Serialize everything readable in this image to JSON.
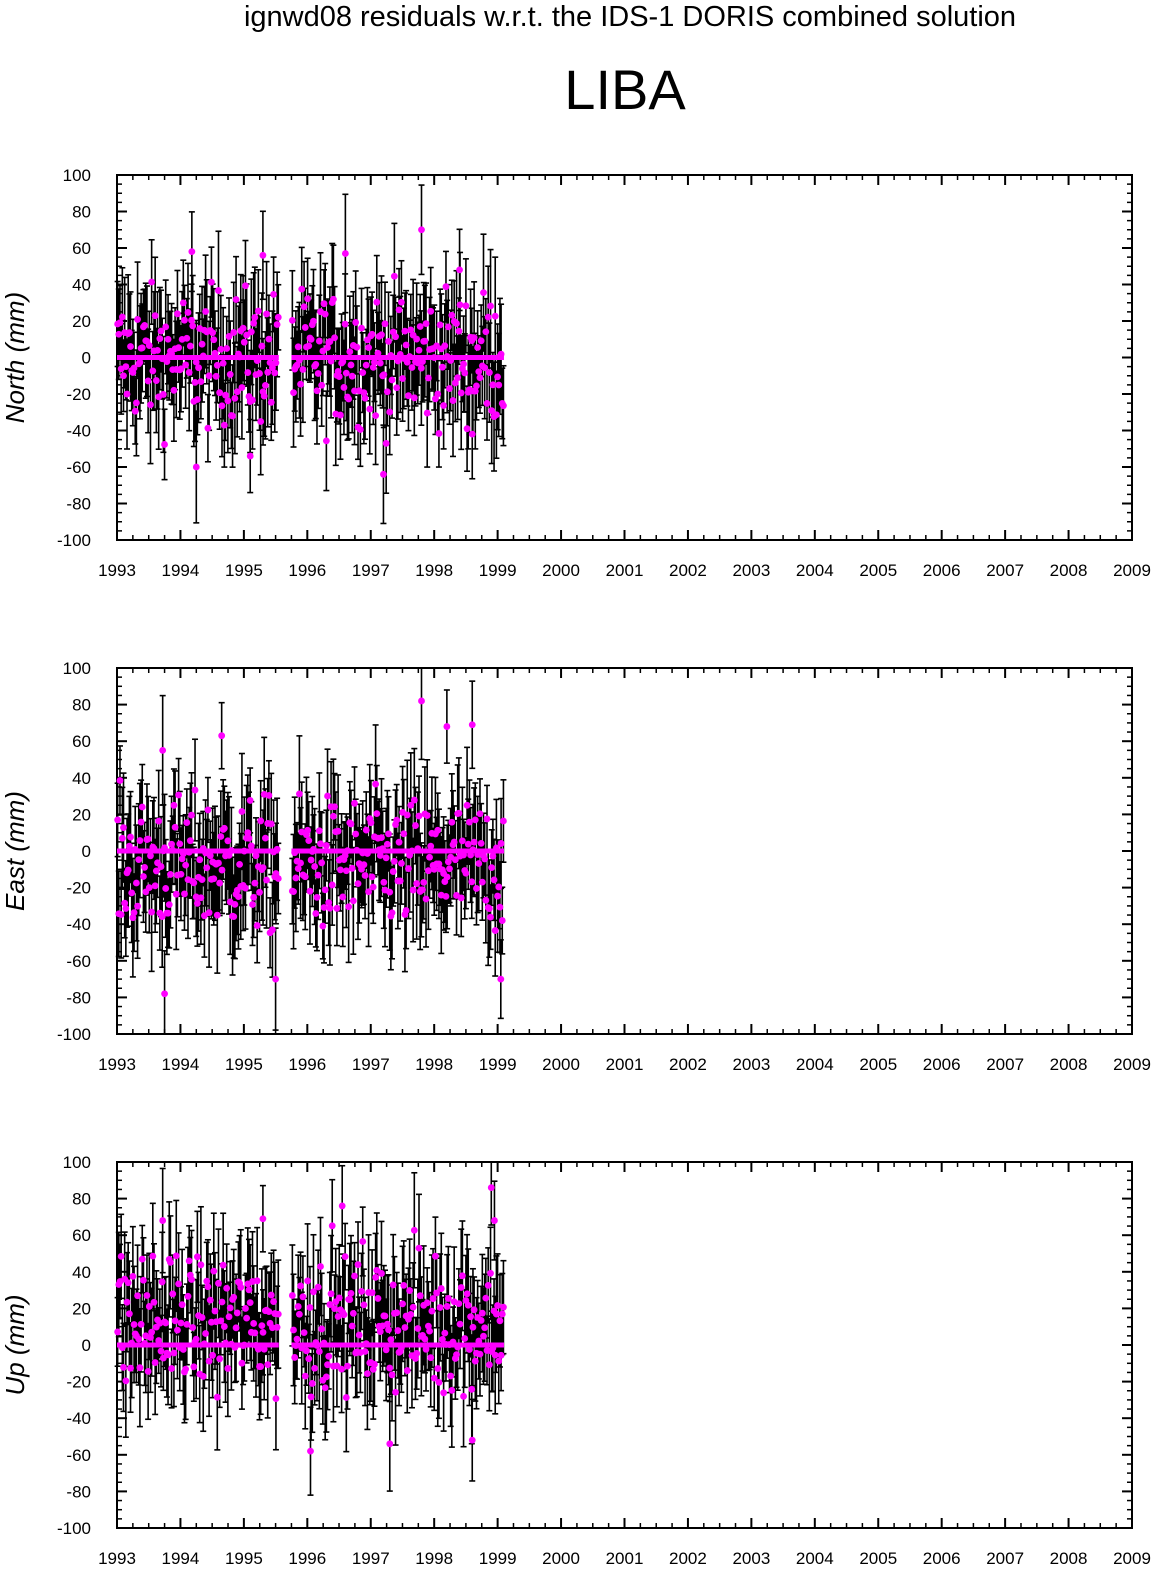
{
  "header": {
    "title": "ignwd08 residuals w.r.t. the IDS-1 DORIS combined solution",
    "station": "LIBA"
  },
  "colors": {
    "point": "#ff00ff",
    "errorbar": "#000000",
    "zero_line": "#ff00ff",
    "axis": "#000000"
  },
  "chart_data": [
    {
      "type": "scatter",
      "panel": "north",
      "ylabel": "North (mm)",
      "xlim": [
        1993,
        2009
      ],
      "ylim": [
        -100,
        100
      ],
      "x_ticks": [
        "1993",
        "1994",
        "1995",
        "1996",
        "1997",
        "1998",
        "1999",
        "2000",
        "2001",
        "2002",
        "2003",
        "2004",
        "2005",
        "2006",
        "2007",
        "2008",
        "2009"
      ],
      "y_ticks": [
        "100",
        "80",
        "60",
        "40",
        "20",
        "0",
        "-20",
        "-40",
        "-60",
        "-80",
        "-100"
      ],
      "zero_line_segments": [
        [
          1993.0,
          1995.55
        ],
        [
          1995.75,
          1999.1
        ]
      ],
      "data_span": [
        1993.0,
        1999.1
      ],
      "y_range": [
        -64,
        70
      ],
      "error_bar": 25,
      "highlights": [
        {
          "x": 1994.18,
          "y": 58
        },
        {
          "x": 1994.25,
          "y": -60
        },
        {
          "x": 1995.3,
          "y": 56
        },
        {
          "x": 1995.1,
          "y": -54
        },
        {
          "x": 1996.6,
          "y": 57
        },
        {
          "x": 1997.2,
          "y": -64
        },
        {
          "x": 1997.8,
          "y": 70
        },
        {
          "x": 1998.4,
          "y": 48
        },
        {
          "x": 1998.6,
          "y": -42
        }
      ]
    },
    {
      "type": "scatter",
      "panel": "east",
      "ylabel": "East (mm)",
      "xlim": [
        1993,
        2009
      ],
      "ylim": [
        -100,
        100
      ],
      "x_ticks": [
        "1993",
        "1994",
        "1995",
        "1996",
        "1997",
        "1998",
        "1999",
        "2000",
        "2001",
        "2002",
        "2003",
        "2004",
        "2005",
        "2006",
        "2007",
        "2008",
        "2009"
      ],
      "y_ticks": [
        "100",
        "80",
        "60",
        "40",
        "20",
        "0",
        "-20",
        "-40",
        "-60",
        "-80",
        "-100"
      ],
      "zero_line_segments": [
        [
          1993.0,
          1995.55
        ],
        [
          1995.75,
          1999.1
        ]
      ],
      "data_span": [
        1993.0,
        1999.1
      ],
      "y_range": [
        -78,
        82
      ],
      "error_bar": 25,
      "highlights": [
        {
          "x": 1993.72,
          "y": 55
        },
        {
          "x": 1993.75,
          "y": -78
        },
        {
          "x": 1994.65,
          "y": 63
        },
        {
          "x": 1995.5,
          "y": -70
        },
        {
          "x": 1997.8,
          "y": 82
        },
        {
          "x": 1998.6,
          "y": 69
        },
        {
          "x": 1999.05,
          "y": -70
        },
        {
          "x": 1998.2,
          "y": 68
        }
      ]
    },
    {
      "type": "scatter",
      "panel": "up",
      "ylabel": "Up (mm)",
      "xlim": [
        1993,
        2009
      ],
      "ylim": [
        -100,
        100
      ],
      "x_ticks": [
        "1993",
        "1994",
        "1995",
        "1996",
        "1997",
        "1998",
        "1999",
        "2000",
        "2001",
        "2002",
        "2003",
        "2004",
        "2005",
        "2006",
        "2007",
        "2008",
        "2009"
      ],
      "y_ticks": [
        "100",
        "80",
        "60",
        "40",
        "20",
        "0",
        "-20",
        "-40",
        "-60",
        "-80",
        "-100"
      ],
      "zero_line_segments": [
        [
          1993.0,
          1995.55
        ],
        [
          1995.75,
          1999.1
        ]
      ],
      "data_span": [
        1993.0,
        1999.1
      ],
      "y_range": [
        -58,
        86
      ],
      "error_bar": 25,
      "highlights": [
        {
          "x": 1993.72,
          "y": 68
        },
        {
          "x": 1996.05,
          "y": -58
        },
        {
          "x": 1996.55,
          "y": 76
        },
        {
          "x": 1997.3,
          "y": -54
        },
        {
          "x": 1998.9,
          "y": 86
        },
        {
          "x": 1998.95,
          "y": 68
        },
        {
          "x": 1998.6,
          "y": -52
        },
        {
          "x": 1995.3,
          "y": 69
        }
      ]
    }
  ]
}
